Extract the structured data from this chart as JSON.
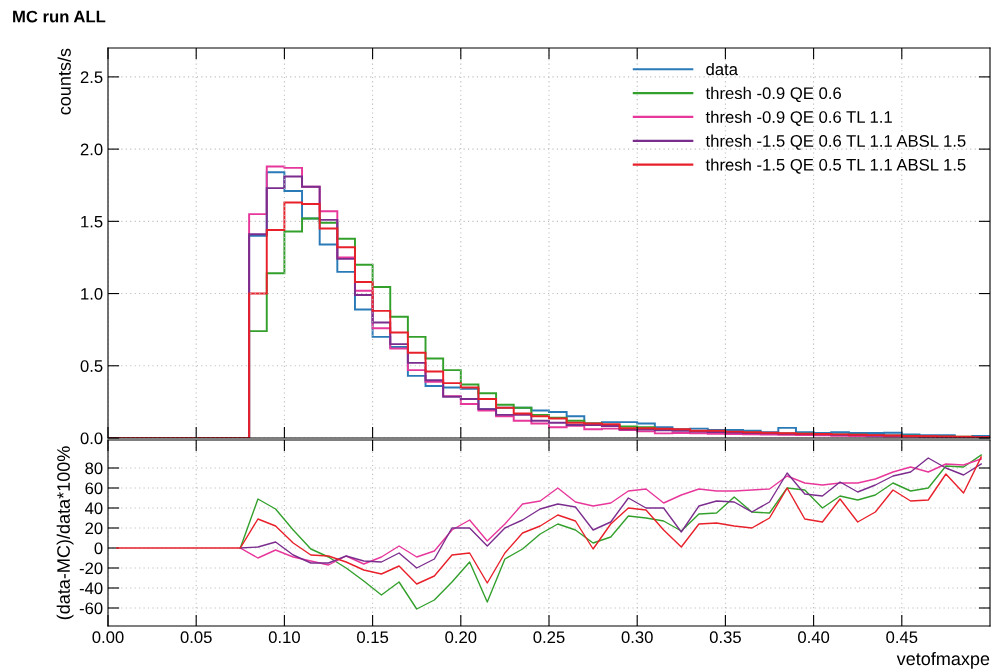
{
  "chart_data": [
    {
      "type": "histogram",
      "title": "MC run ALL",
      "ylabel": "counts/s",
      "bins": [
        0.0,
        0.01,
        0.02,
        0.03,
        0.04,
        0.05,
        0.06,
        0.07,
        0.08,
        0.09,
        0.1,
        0.11,
        0.12,
        0.13,
        0.14,
        0.15,
        0.16,
        0.17,
        0.18,
        0.19,
        0.2,
        0.21,
        0.22,
        0.23,
        0.24,
        0.25,
        0.26,
        0.27,
        0.28,
        0.29,
        0.3,
        0.31,
        0.32,
        0.33,
        0.34,
        0.35,
        0.36,
        0.37,
        0.38,
        0.39,
        0.4,
        0.41,
        0.42,
        0.43,
        0.44,
        0.45,
        0.46,
        0.47,
        0.48,
        0.49,
        0.5
      ],
      "series": [
        {
          "name": "data",
          "color": "#2a7ab8",
          "values": [
            0,
            0,
            0,
            0,
            0,
            0,
            0,
            0,
            1.4,
            1.84,
            1.71,
            1.52,
            1.34,
            1.15,
            0.89,
            0.7,
            0.63,
            0.43,
            0.36,
            0.35,
            0.34,
            0.2,
            0.21,
            0.21,
            0.19,
            0.18,
            0.15,
            0.1,
            0.11,
            0.11,
            0.1,
            0.075,
            0.06,
            0.065,
            0.055,
            0.055,
            0.05,
            0.04,
            0.07,
            0.04,
            0.035,
            0.04,
            0.035,
            0.035,
            0.037,
            0.025,
            0.02,
            0.02,
            0.007,
            0.014
          ]
        },
        {
          "name": "thresh -0.9 QE 0.6",
          "color": "#33a02c",
          "values": [
            0,
            0,
            0,
            0,
            0,
            0,
            0,
            0,
            0.74,
            1.14,
            1.43,
            1.52,
            1.49,
            1.38,
            1.2,
            1.045,
            0.84,
            0.7,
            0.55,
            0.47,
            0.37,
            0.31,
            0.23,
            0.21,
            0.16,
            0.14,
            0.12,
            0.1,
            0.09,
            0.08,
            0.074,
            0.055,
            0.055,
            0.048,
            0.045,
            0.04,
            0.038,
            0.035,
            0.032,
            0.03,
            0.027,
            0.025,
            0.022,
            0.02,
            0.017,
            0.015,
            0.012,
            0.01,
            0.008,
            0.006
          ]
        },
        {
          "name": "thresh -0.9 QE 0.6 TL 1.1",
          "color": "#e8379a",
          "values": [
            0,
            0,
            0,
            0,
            0,
            0,
            0,
            0,
            1.55,
            1.88,
            1.87,
            1.74,
            1.57,
            1.25,
            1.02,
            0.76,
            0.62,
            0.47,
            0.39,
            0.29,
            0.235,
            0.19,
            0.15,
            0.12,
            0.1,
            0.075,
            0.085,
            0.06,
            0.065,
            0.055,
            0.046,
            0.032,
            0.035,
            0.033,
            0.03,
            0.028,
            0.026,
            0.024,
            0.022,
            0.02,
            0.018,
            0.016,
            0.014,
            0.012,
            0.01,
            0.009,
            0.008,
            0.006,
            0.005,
            0.004
          ]
        },
        {
          "name": "thresh -1.5 QE 0.6 TL 1.1 ABSL 1.5",
          "color": "#7b2d8e",
          "values": [
            0,
            0,
            0,
            0,
            0,
            0,
            0,
            0,
            1.41,
            1.73,
            1.81,
            1.74,
            1.51,
            1.24,
            0.99,
            0.8,
            0.65,
            0.52,
            0.4,
            0.285,
            0.27,
            0.2,
            0.16,
            0.16,
            0.12,
            0.105,
            0.09,
            0.09,
            0.083,
            0.06,
            0.058,
            0.053,
            0.05,
            0.045,
            0.042,
            0.038,
            0.035,
            0.032,
            0.03,
            0.027,
            0.025,
            0.022,
            0.02,
            0.017,
            0.015,
            0.013,
            0.011,
            0.009,
            0.007,
            0.005
          ]
        },
        {
          "name": "thresh -1.5 QE 0.5 TL 1.1 ABSL 1.5",
          "color": "#e8202a",
          "values": [
            0,
            0,
            0,
            0,
            0,
            0,
            0,
            0,
            1.0,
            1.44,
            1.63,
            1.62,
            1.45,
            1.32,
            1.08,
            0.88,
            0.73,
            0.59,
            0.46,
            0.38,
            0.35,
            0.27,
            0.21,
            0.17,
            0.15,
            0.135,
            0.105,
            0.1,
            0.095,
            0.067,
            0.067,
            0.064,
            0.06,
            0.05,
            0.05,
            0.044,
            0.04,
            0.036,
            0.033,
            0.03,
            0.028,
            0.025,
            0.022,
            0.02,
            0.017,
            0.014,
            0.012,
            0.01,
            0.008,
            0.006
          ]
        }
      ],
      "xlim": [
        0,
        0.5
      ],
      "xticks": [
        0.0,
        0.05,
        0.1,
        0.15,
        0.2,
        0.25,
        0.3,
        0.35,
        0.4,
        0.45
      ],
      "ylim": [
        0,
        2.7
      ],
      "yticks": [
        {
          "value": 0,
          "label": "0.0"
        },
        {
          "value": 0.5,
          "label": "0.5"
        },
        {
          "value": 1,
          "label": "1.0"
        },
        {
          "value": 1.5,
          "label": "1.5"
        },
        {
          "value": 2,
          "label": "2.0"
        },
        {
          "value": 2.5,
          "label": "2.5"
        }
      ],
      "tick_labels": "y",
      "grid": true,
      "legend": "top right"
    },
    {
      "type": "line",
      "xlabel": "vetofmaxpe",
      "ylabel": "(data-MC)/data*100%",
      "x": [
        0.005,
        0.015,
        0.025,
        0.035,
        0.045,
        0.055,
        0.065,
        0.075,
        0.085,
        0.095,
        0.105,
        0.115,
        0.125,
        0.135,
        0.145,
        0.155,
        0.165,
        0.175,
        0.185,
        0.195,
        0.205,
        0.215,
        0.225,
        0.235,
        0.245,
        0.255,
        0.265,
        0.275,
        0.285,
        0.295,
        0.305,
        0.315,
        0.325,
        0.335,
        0.345,
        0.355,
        0.365,
        0.375,
        0.385,
        0.395,
        0.405,
        0.415,
        0.425,
        0.435,
        0.445,
        0.455,
        0.465,
        0.475,
        0.485,
        0.495
      ],
      "series": [
        {
          "color": "#33a02c",
          "values": [
            null,
            null,
            null,
            null,
            null,
            null,
            null,
            0,
            49,
            39,
            18,
            -1,
            -9,
            -20,
            -33,
            -47,
            -34,
            -61,
            -52,
            -34,
            -14,
            -54,
            -11,
            -1,
            14,
            24,
            18,
            5,
            11,
            32,
            30,
            27,
            17,
            34,
            35,
            51,
            36,
            35,
            60,
            58,
            40,
            52,
            48,
            53,
            65,
            57,
            60,
            82,
            81,
            93
          ]
        },
        {
          "color": "#e8379a",
          "values": [
            null,
            null,
            null,
            null,
            null,
            null,
            null,
            0,
            -10,
            -2,
            -9,
            -13,
            -17,
            -8,
            -16,
            -9,
            2,
            -9,
            -3,
            18,
            28,
            7,
            24,
            44,
            47,
            60,
            46,
            42,
            45,
            57,
            59,
            45,
            53,
            59,
            57,
            57,
            58,
            59,
            72,
            65,
            63,
            65,
            65,
            69,
            76,
            81,
            76,
            84,
            83,
            89
          ]
        },
        {
          "color": "#7b2d8e",
          "values": [
            null,
            null,
            null,
            null,
            null,
            null,
            null,
            0,
            1,
            6,
            -7,
            -15,
            -15,
            -8,
            -13,
            -14,
            -5,
            -20,
            -11,
            20,
            20,
            2,
            20,
            28,
            39,
            44,
            41,
            18,
            26,
            50,
            40,
            40,
            16,
            42,
            47,
            46,
            36,
            46,
            75,
            54,
            52,
            66,
            56,
            63,
            72,
            76,
            90,
            80,
            73,
            84
          ]
        },
        {
          "color": "#e8202a",
          "values": [
            0,
            0,
            0,
            0,
            0,
            0,
            0,
            0,
            29,
            22,
            5,
            -7,
            -8,
            -14,
            -22,
            -26,
            -18,
            -36,
            -28,
            -7,
            -5,
            -35,
            -5,
            15,
            22,
            33,
            27,
            -1,
            24,
            40,
            38,
            18,
            1,
            24,
            25,
            22,
            20,
            30,
            60,
            29,
            26,
            49,
            26,
            36,
            58,
            47,
            48,
            74,
            55,
            91
          ]
        }
      ],
      "xlim": [
        0,
        0.5
      ],
      "xticks": [
        {
          "value": 0,
          "label": "0.00"
        },
        {
          "value": 0.05,
          "label": "0.05"
        },
        {
          "value": 0.1,
          "label": "0.10"
        },
        {
          "value": 0.15,
          "label": "0.15"
        },
        {
          "value": 0.2,
          "label": "0.20"
        },
        {
          "value": 0.25,
          "label": "0.25"
        },
        {
          "value": 0.3,
          "label": "0.30"
        },
        {
          "value": 0.35,
          "label": "0.35"
        },
        {
          "value": 0.4,
          "label": "0.40"
        },
        {
          "value": 0.45,
          "label": "0.45"
        }
      ],
      "ylim": [
        -78,
        108
      ],
      "yticks": [
        -60,
        -40,
        -20,
        0,
        20,
        40,
        60,
        80
      ],
      "grid": true
    }
  ]
}
